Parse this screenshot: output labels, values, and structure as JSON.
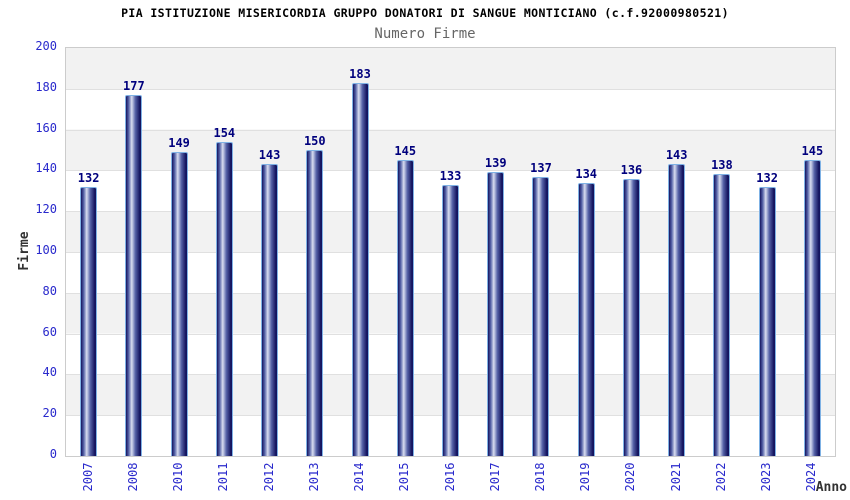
{
  "chart_data": {
    "type": "bar",
    "title": "PIA ISTITUZIONE MISERICORDIA GRUPPO DONATORI DI SANGUE MONTICIANO (c.f.92000980521)",
    "subtitle": "Numero Firme",
    "xlabel": "Anno",
    "ylabel": "Firme",
    "categories": [
      "2007",
      "2008",
      "2010",
      "2011",
      "2012",
      "2013",
      "2014",
      "2015",
      "2016",
      "2017",
      "2018",
      "2019",
      "2020",
      "2021",
      "2022",
      "2023",
      "2024"
    ],
    "values": [
      132,
      177,
      149,
      154,
      143,
      150,
      183,
      145,
      133,
      139,
      137,
      134,
      136,
      143,
      138,
      132,
      145
    ],
    "ylim": [
      0,
      200
    ],
    "yticks": [
      0,
      20,
      40,
      60,
      80,
      100,
      120,
      140,
      160,
      180,
      200
    ],
    "grid": "horizontal gridlines every 20 with alternating gray/white bands",
    "legend": "none",
    "colors": {
      "bar_edge_dark": "#14145f",
      "bar_mid": "#5663a8",
      "bar_highlight": "#d8ddf0",
      "bar_border": "#7fb2e5",
      "value_label": "#00007d",
      "axis_tick_label": "#2929cc",
      "axis_title": "#333333",
      "band_gray": "#f2f2f2",
      "grid_line": "#e0e0e0",
      "plot_border": "#cccccc",
      "title_color": "#000000",
      "subtitle_color": "#666666"
    }
  }
}
